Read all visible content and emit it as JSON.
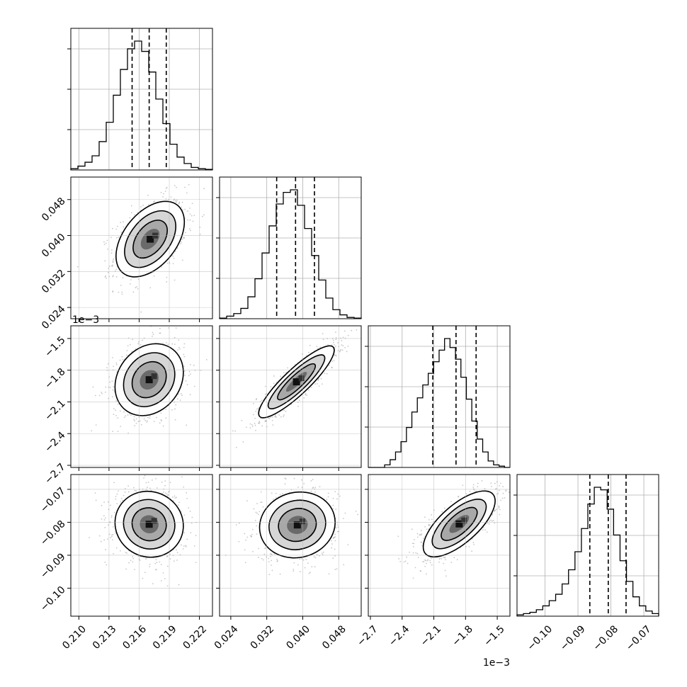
{
  "chart_data": {
    "type": "corner",
    "parameters": 4,
    "axis_ticks": {
      "p0": {
        "ticks": [
          "0.210",
          "0.213",
          "0.216",
          "0.219",
          "0.222"
        ],
        "range": [
          0.2092,
          0.2233
        ]
      },
      "p1": {
        "ticks": [
          "0.024",
          "0.032",
          "0.040",
          "0.048"
        ],
        "range": [
          0.0215,
          0.053
        ]
      },
      "p2": {
        "ticks": [
          "−2.7",
          "−2.4",
          "−2.1",
          "−1.8",
          "−1.5"
        ],
        "range": [
          -2.72,
          -1.38
        ],
        "offset_label": "1e−3"
      },
      "p3": {
        "ticks": [
          "−0.10",
          "−0.09",
          "−0.08",
          "−0.07"
        ],
        "range": [
          -0.1085,
          -0.0655
        ]
      }
    },
    "marginals": {
      "p0": {
        "quantiles": [
          0.2153,
          0.217,
          0.2187
        ],
        "hist": [
          0.01,
          0.03,
          0.06,
          0.11,
          0.22,
          0.37,
          0.58,
          0.78,
          0.94,
          1.0,
          0.92,
          0.76,
          0.55,
          0.36,
          0.2,
          0.1,
          0.05,
          0.02,
          0.01,
          0.005
        ]
      },
      "p1": {
        "quantiles": [
          0.0342,
          0.0384,
          0.0426
        ],
        "hist": [
          0.005,
          0.02,
          0.04,
          0.08,
          0.17,
          0.31,
          0.51,
          0.72,
          0.89,
          0.98,
          1.0,
          0.88,
          0.7,
          0.49,
          0.3,
          0.16,
          0.07,
          0.03,
          0.01,
          0.005
        ]
      },
      "p2": {
        "quantiles": [
          -2.11,
          -1.89,
          -1.7
        ],
        "hist": [
          0.0,
          0.0,
          0.0,
          0.02,
          0.06,
          0.12,
          0.2,
          0.31,
          0.43,
          0.54,
          0.64,
          0.73,
          0.82,
          0.91,
          1.0,
          0.93,
          0.84,
          0.7,
          0.53,
          0.36,
          0.22,
          0.12,
          0.05,
          0.02,
          0.01,
          0.0
        ]
      },
      "p3": {
        "quantiles": [
          -0.0864,
          -0.0808,
          -0.0754
        ],
        "hist": [
          0.01,
          0.02,
          0.03,
          0.05,
          0.08,
          0.12,
          0.17,
          0.25,
          0.36,
          0.5,
          0.68,
          0.87,
          1.0,
          0.98,
          0.83,
          0.63,
          0.43,
          0.27,
          0.15,
          0.08,
          0.04,
          0.02
        ]
      }
    },
    "pairs": [
      {
        "x": "p0",
        "y": "p1",
        "mean": [
          0.2171,
          0.0392
        ],
        "sd": [
          0.0017,
          0.0042
        ],
        "corr": 0.45
      },
      {
        "x": "p0",
        "y": "p2",
        "mean": [
          0.217,
          -1.89
        ],
        "sd": [
          0.0017,
          0.17
        ],
        "corr": 0.2
      },
      {
        "x": "p1",
        "y": "p2",
        "mean": [
          0.0386,
          -1.91
        ],
        "sd": [
          0.0042,
          0.17
        ],
        "corr": 0.88
      },
      {
        "x": "p0",
        "y": "p3",
        "mean": [
          0.217,
          -0.0806
        ],
        "sd": [
          0.0017,
          0.005
        ],
        "corr": -0.05
      },
      {
        "x": "p1",
        "y": "p3",
        "mean": [
          0.0388,
          -0.0808
        ],
        "sd": [
          0.0042,
          0.005
        ],
        "corr": 0.08
      },
      {
        "x": "p2",
        "y": "p3",
        "mean": [
          -1.86,
          -0.0805
        ],
        "sd": [
          0.17,
          0.005
        ],
        "corr": 0.7
      }
    ],
    "title": "",
    "xlabel": "",
    "ylabel": "",
    "grid": true,
    "legend": "none"
  }
}
